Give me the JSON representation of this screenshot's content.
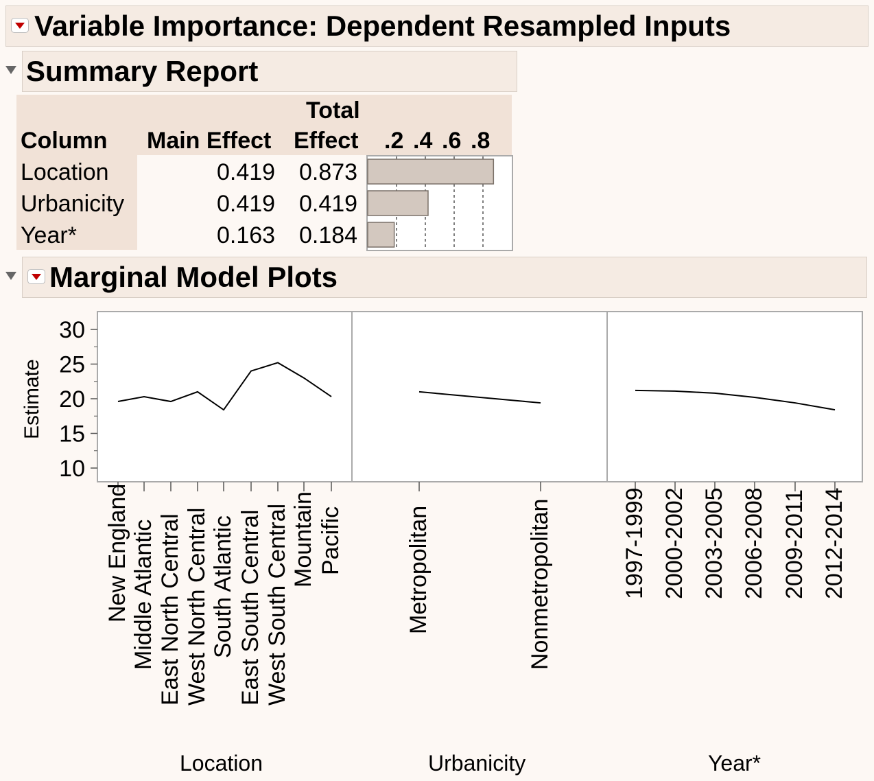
{
  "report": {
    "title": "Variable Importance: Dependent Resampled Inputs"
  },
  "summary": {
    "title": "Summary Report",
    "headers": {
      "column": "Column",
      "main_effect": "Main Effect",
      "total_effect_line1": "Total",
      "total_effect_line2": "Effect",
      "ticks": [
        ".2",
        ".4",
        ".6",
        ".8"
      ]
    },
    "rows": [
      {
        "column": "Location",
        "main_effect": "0.419",
        "total_effect": "0.873",
        "bar_value": 0.873
      },
      {
        "column": "Urbanicity",
        "main_effect": "0.419",
        "total_effect": "0.419",
        "bar_value": 0.419
      },
      {
        "column": "Year*",
        "main_effect": "0.163",
        "total_effect": "0.184",
        "bar_value": 0.184
      }
    ],
    "colors": {
      "bar_fill": "#d3c8bf",
      "bar_stroke": "#7a7068",
      "row_label_bg": "#f1e2d7"
    }
  },
  "marginal": {
    "title": "Marginal Model Plots",
    "y_axis_label": "Estimate",
    "y_ticks": [
      "30",
      "25",
      "20",
      "15",
      "10"
    ],
    "panels": [
      {
        "name": "Location",
        "categories": [
          "New England",
          "Middle Atlantic",
          "East North Central",
          "West North Central",
          "South Atlantic",
          "East South Central",
          "West South Central",
          "Mountain",
          "Pacific"
        ]
      },
      {
        "name": "Urbanicity",
        "categories": [
          "Metropolitan",
          "Nonmetropolitan"
        ]
      },
      {
        "name": "Year*",
        "categories": [
          "1997-1999",
          "2000-2002",
          "2003-2005",
          "2006-2008",
          "2009-2011",
          "2012-2014"
        ]
      }
    ]
  },
  "chart_data": {
    "type": "line",
    "ylabel": "Estimate",
    "ylim": [
      10,
      32
    ],
    "y_ticks": [
      10,
      15,
      20,
      25,
      30
    ],
    "panels": [
      {
        "xlabel": "Location",
        "categories": [
          "New England",
          "Middle Atlantic",
          "East North Central",
          "West North Central",
          "South Atlantic",
          "East South Central",
          "West South Central",
          "Mountain",
          "Pacific"
        ],
        "values": [
          19.6,
          20.3,
          19.6,
          21.0,
          18.4,
          24.0,
          25.2,
          23.0,
          20.3
        ]
      },
      {
        "xlabel": "Urbanicity",
        "categories": [
          "Metropolitan",
          "Nonmetropolitan"
        ],
        "values": [
          21.0,
          19.4
        ]
      },
      {
        "xlabel": "Year*",
        "categories": [
          "1997-1999",
          "2000-2002",
          "2003-2005",
          "2006-2008",
          "2009-2011",
          "2012-2014"
        ],
        "values": [
          21.2,
          21.1,
          20.8,
          20.2,
          19.4,
          18.4
        ]
      }
    ]
  }
}
